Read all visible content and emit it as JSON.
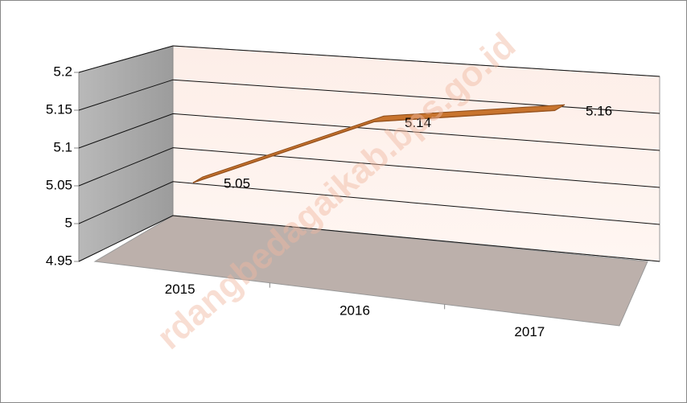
{
  "chart_data": {
    "type": "line3d",
    "categories": [
      "2015",
      "2016",
      "2017"
    ],
    "series": [
      {
        "name": null,
        "color": "#c8742e",
        "values": [
          5.05,
          5.14,
          5.16
        ]
      }
    ],
    "ylim": [
      4.95,
      5.2
    ],
    "yticks": [
      4.95,
      5,
      5.05,
      5.1,
      5.15,
      5.2
    ],
    "grid": true,
    "watermark": "rdangbedagaikab.bps.go.id"
  }
}
